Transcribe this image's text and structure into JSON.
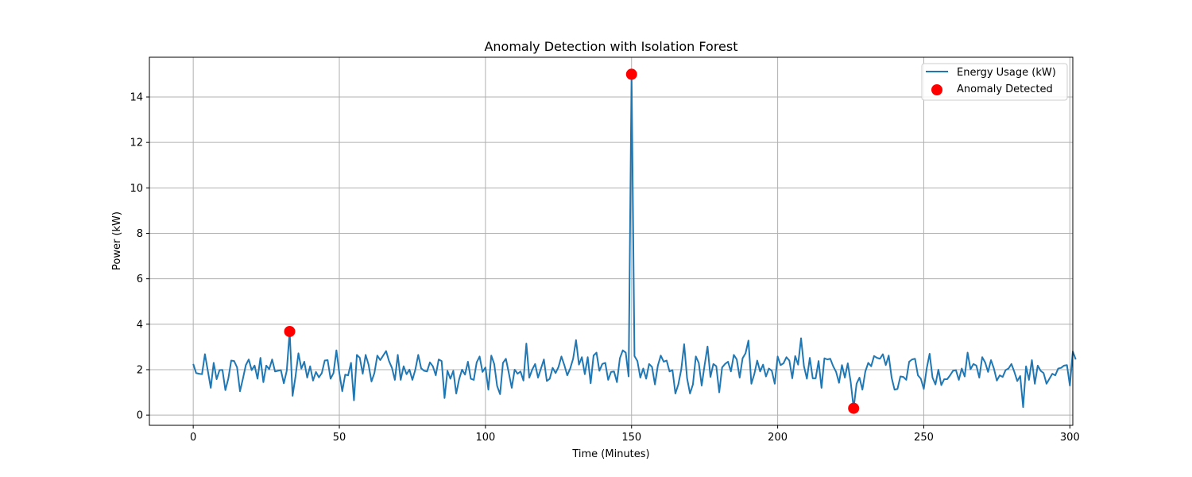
{
  "chart_data": {
    "type": "line",
    "title": "Anomaly Detection with Isolation Forest",
    "xlabel": "Time (Minutes)",
    "ylabel": "Power (kW)",
    "xlim": [
      -15,
      301
    ],
    "ylim": [
      -0.45,
      15.75
    ],
    "xticks": [
      0,
      50,
      100,
      150,
      200,
      250,
      300
    ],
    "yticks": [
      0,
      2,
      4,
      6,
      8,
      10,
      12,
      14
    ],
    "grid": true,
    "legend_position": "top-right",
    "colors": {
      "line": "#1f77b4",
      "anomaly": "#ff0000",
      "grid": "#b0b0b0"
    },
    "series": [
      {
        "name": "Energy Usage (kW)",
        "x_start": 0,
        "x_step": 1,
        "values": [
          2.25,
          1.85,
          1.82,
          1.8,
          2.68,
          1.95,
          1.2,
          2.3,
          1.58,
          1.98,
          1.99,
          1.1,
          1.6,
          2.4,
          2.38,
          2.1,
          1.05,
          1.6,
          2.2,
          2.45,
          1.98,
          2.18,
          1.6,
          2.52,
          1.45,
          2.18,
          2.02,
          2.45,
          1.92,
          1.95,
          1.98,
          1.4,
          1.95,
          3.68,
          0.85,
          1.7,
          2.72,
          2.05,
          2.35,
          1.65,
          2.15,
          1.52,
          1.9,
          1.66,
          1.85,
          2.4,
          2.42,
          1.6,
          1.85,
          2.85,
          1.85,
          1.05,
          1.78,
          1.75,
          2.3,
          0.65,
          2.65,
          2.52,
          1.82,
          2.65,
          2.22,
          1.48,
          1.85,
          2.62,
          2.42,
          2.62,
          2.82,
          2.38,
          2.08,
          1.55,
          2.65,
          1.55,
          2.15,
          1.8,
          2.0,
          1.55,
          2.0,
          2.65,
          2.06,
          1.95,
          1.92,
          2.32,
          2.15,
          1.75,
          2.45,
          2.38,
          0.75,
          1.95,
          1.6,
          1.95,
          0.95,
          1.58,
          2.0,
          1.78,
          2.35,
          1.6,
          1.55,
          2.32,
          2.58,
          1.9,
          2.1,
          1.12,
          2.62,
          2.25,
          1.28,
          0.92,
          2.3,
          2.48,
          1.85,
          1.2,
          2.0,
          1.82,
          1.92,
          1.52,
          3.15,
          1.65,
          2.0,
          2.25,
          1.65,
          2.05,
          2.45,
          1.5,
          1.6,
          2.08,
          1.85,
          2.12,
          2.58,
          2.2,
          1.75,
          2.05,
          2.48,
          3.3,
          2.22,
          2.55,
          1.8,
          2.55,
          1.4,
          2.62,
          2.75,
          1.95,
          2.25,
          2.3,
          1.55,
          1.9,
          1.92,
          1.45,
          2.5,
          2.85,
          2.75,
          1.7,
          15.0,
          2.6,
          2.38,
          1.65,
          2.05,
          1.6,
          2.25,
          2.12,
          1.35,
          2.18,
          2.62,
          2.35,
          2.4,
          1.92,
          1.98,
          0.95,
          1.35,
          2.0,
          3.12,
          1.62,
          0.95,
          1.35,
          2.58,
          2.3,
          1.3,
          2.2,
          3.02,
          1.68,
          2.25,
          2.15,
          1.0,
          2.1,
          2.25,
          2.35,
          1.92,
          2.65,
          2.45,
          1.65,
          2.5,
          2.72,
          3.28,
          1.38,
          1.8,
          2.4,
          1.92,
          2.22,
          1.7,
          2.05,
          1.95,
          1.38,
          2.58,
          2.2,
          2.28,
          2.55,
          2.4,
          1.62,
          2.6,
          2.22,
          3.38,
          2.15,
          1.6,
          2.52,
          1.62,
          1.62,
          2.38,
          1.2,
          2.5,
          2.45,
          2.48,
          2.15,
          1.9,
          1.42,
          2.2,
          1.65,
          2.28,
          1.45,
          0.3,
          1.38,
          1.65,
          1.12,
          1.92,
          2.3,
          2.15,
          2.6,
          2.52,
          2.48,
          2.68,
          2.2,
          2.62,
          1.65,
          1.12,
          1.15,
          1.7,
          1.68,
          1.55,
          2.35,
          2.45,
          2.48,
          1.75,
          1.6,
          1.15,
          2.05,
          2.7,
          1.65,
          1.35,
          2.0,
          1.32,
          1.58,
          1.58,
          1.75,
          1.95,
          1.98,
          1.55,
          2.05,
          1.7,
          2.75,
          2.02,
          2.25,
          2.18,
          1.65,
          2.55,
          2.32,
          1.9,
          2.42,
          2.05,
          1.52,
          1.75,
          1.68,
          1.98,
          2.05,
          2.25,
          1.9,
          1.5,
          1.72,
          0.35,
          2.15,
          1.55,
          2.42,
          1.38,
          2.18,
          1.95,
          1.85,
          1.38,
          1.6,
          1.82,
          1.75,
          2.05,
          2.08,
          2.18,
          2.2,
          1.3,
          2.8,
          2.45
        ]
      },
      {
        "name": "Anomaly Detected",
        "style": "scatter",
        "points": [
          {
            "x": 33,
            "y": 3.68
          },
          {
            "x": 150,
            "y": 15.0
          },
          {
            "x": 226,
            "y": 0.3
          }
        ]
      }
    ]
  }
}
